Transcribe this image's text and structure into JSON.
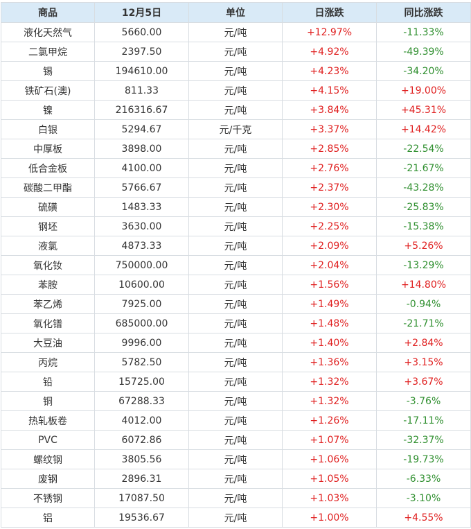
{
  "headers": {
    "name": "商品",
    "price": "12月5日",
    "unit": "单位",
    "day": "日涨跌",
    "yoy": "同比涨跌"
  },
  "colors": {
    "up": "#e02020",
    "down": "#2f8f2f",
    "header_bg": "#d9eaf7"
  },
  "rows": [
    {
      "name": "液化天然气",
      "price": "5660.00",
      "unit": "元/吨",
      "day": "+12.97%",
      "yoy": "-11.33%"
    },
    {
      "name": "二氯甲烷",
      "price": "2397.50",
      "unit": "元/吨",
      "day": "+4.92%",
      "yoy": "-49.39%"
    },
    {
      "name": "锡",
      "price": "194610.00",
      "unit": "元/吨",
      "day": "+4.23%",
      "yoy": "-34.20%"
    },
    {
      "name": "铁矿石(澳)",
      "price": "811.33",
      "unit": "元/吨",
      "day": "+4.15%",
      "yoy": "+19.00%"
    },
    {
      "name": "镍",
      "price": "216316.67",
      "unit": "元/吨",
      "day": "+3.84%",
      "yoy": "+45.31%"
    },
    {
      "name": "白银",
      "price": "5294.67",
      "unit": "元/千克",
      "day": "+3.37%",
      "yoy": "+14.42%"
    },
    {
      "name": "中厚板",
      "price": "3898.00",
      "unit": "元/吨",
      "day": "+2.85%",
      "yoy": "-22.54%"
    },
    {
      "name": "低合金板",
      "price": "4100.00",
      "unit": "元/吨",
      "day": "+2.76%",
      "yoy": "-21.67%"
    },
    {
      "name": "碳酸二甲酯",
      "price": "5766.67",
      "unit": "元/吨",
      "day": "+2.37%",
      "yoy": "-43.28%"
    },
    {
      "name": "硫磺",
      "price": "1483.33",
      "unit": "元/吨",
      "day": "+2.30%",
      "yoy": "-25.83%"
    },
    {
      "name": "钢坯",
      "price": "3630.00",
      "unit": "元/吨",
      "day": "+2.25%",
      "yoy": "-15.38%"
    },
    {
      "name": "液氯",
      "price": "4873.33",
      "unit": "元/吨",
      "day": "+2.09%",
      "yoy": "+5.26%"
    },
    {
      "name": "氧化钕",
      "price": "750000.00",
      "unit": "元/吨",
      "day": "+2.04%",
      "yoy": "-13.29%"
    },
    {
      "name": "苯胺",
      "price": "10600.00",
      "unit": "元/吨",
      "day": "+1.56%",
      "yoy": "+14.80%"
    },
    {
      "name": "苯乙烯",
      "price": "7925.00",
      "unit": "元/吨",
      "day": "+1.49%",
      "yoy": "-0.94%"
    },
    {
      "name": "氧化镨",
      "price": "685000.00",
      "unit": "元/吨",
      "day": "+1.48%",
      "yoy": "-21.71%"
    },
    {
      "name": "大豆油",
      "price": "9996.00",
      "unit": "元/吨",
      "day": "+1.40%",
      "yoy": "+2.84%"
    },
    {
      "name": "丙烷",
      "price": "5782.50",
      "unit": "元/吨",
      "day": "+1.36%",
      "yoy": "+3.15%"
    },
    {
      "name": "铅",
      "price": "15725.00",
      "unit": "元/吨",
      "day": "+1.32%",
      "yoy": "+3.67%"
    },
    {
      "name": "铜",
      "price": "67288.33",
      "unit": "元/吨",
      "day": "+1.32%",
      "yoy": "-3.76%"
    },
    {
      "name": "热轧板卷",
      "price": "4012.00",
      "unit": "元/吨",
      "day": "+1.26%",
      "yoy": "-17.11%"
    },
    {
      "name": "PVC",
      "price": "6072.86",
      "unit": "元/吨",
      "day": "+1.07%",
      "yoy": "-32.37%"
    },
    {
      "name": "螺纹钢",
      "price": "3805.56",
      "unit": "元/吨",
      "day": "+1.06%",
      "yoy": "-19.73%"
    },
    {
      "name": "废钢",
      "price": "2896.31",
      "unit": "元/吨",
      "day": "+1.05%",
      "yoy": "-6.33%"
    },
    {
      "name": "不锈钢",
      "price": "17087.50",
      "unit": "元/吨",
      "day": "+1.03%",
      "yoy": "-3.10%"
    },
    {
      "name": "铝",
      "price": "19536.67",
      "unit": "元/吨",
      "day": "+1.00%",
      "yoy": "+4.55%"
    }
  ]
}
